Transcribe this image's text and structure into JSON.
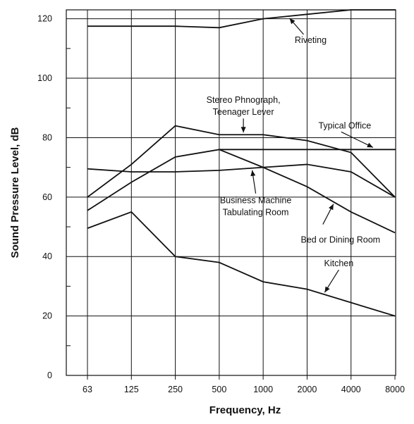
{
  "chart_data": {
    "type": "line",
    "xlabel": "Frequency, Hz",
    "ylabel": "Sound Pressure Level, dB",
    "categories": [
      "63",
      "125",
      "250",
      "500",
      "1000",
      "2000",
      "4000",
      "8000"
    ],
    "yticks": [
      0,
      20,
      40,
      60,
      80,
      100,
      120
    ],
    "ylim": [
      0,
      123
    ],
    "grid": true,
    "series": [
      {
        "name": "Riveting",
        "values": [
          117.5,
          117.5,
          117.5,
          117,
          120,
          121.5,
          123,
          123
        ]
      },
      {
        "name": "Stereo Phnograph, Teenager Lever",
        "values": [
          60,
          71,
          84,
          81,
          81,
          79,
          75,
          60
        ]
      },
      {
        "name": "Typical Office",
        "values": [
          null,
          null,
          null,
          76,
          76,
          76,
          76,
          76
        ]
      },
      {
        "name": "Business Machine Tabulating Room",
        "values": [
          69.5,
          68.5,
          68.5,
          69,
          70,
          71,
          68.5,
          60
        ]
      },
      {
        "name": "Bed or Dining Room",
        "values": [
          55.5,
          65,
          73.5,
          76,
          70,
          63.5,
          55,
          48
        ]
      },
      {
        "name": "Kitchen",
        "values": [
          49.5,
          55,
          40,
          38,
          31.5,
          29,
          24.5,
          20
        ]
      }
    ],
    "annotations": [
      {
        "lines": [
          "Riveting"
        ],
        "series": 0,
        "x_index": 4.6
      },
      {
        "lines": [
          "Stereo Phnograph,",
          "Teenager Lever"
        ],
        "series": 1,
        "x_index": 3.55
      },
      {
        "lines": [
          "Typical Office"
        ],
        "series": 2,
        "x_index": 6.5
      },
      {
        "lines": [
          "Business Machine",
          "Tabulating Room"
        ],
        "series": 3,
        "x_index": 3.75
      },
      {
        "lines": [
          "Bed or Dining Room"
        ],
        "series": 4,
        "x_index": 5.6
      },
      {
        "lines": [
          "Kitchen"
        ],
        "series": 5,
        "x_index": 5.4
      }
    ]
  }
}
